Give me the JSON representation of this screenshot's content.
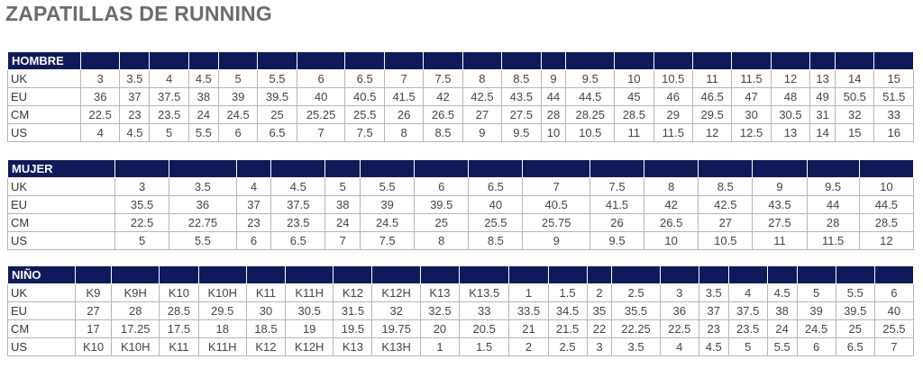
{
  "title": "ZAPATILLAS DE RUNNING",
  "tables": [
    {
      "label": "HOMBRE",
      "rows": [
        {
          "label": "UK",
          "cells": [
            "3",
            "3.5",
            "4",
            "4.5",
            "5",
            "5.5",
            "6",
            "6.5",
            "7",
            "7.5",
            "8",
            "8.5",
            "9",
            "9.5",
            "10",
            "10.5",
            "11",
            "11.5",
            "12",
            "13",
            "14",
            "15"
          ]
        },
        {
          "label": "EU",
          "cells": [
            "36",
            "37",
            "37.5",
            "38",
            "39",
            "39.5",
            "40",
            "40.5",
            "41.5",
            "42",
            "42.5",
            "43.5",
            "44",
            "44.5",
            "45",
            "46",
            "46.5",
            "47",
            "48",
            "49",
            "50.5",
            "51.5"
          ]
        },
        {
          "label": "CM",
          "cells": [
            "22.5",
            "23",
            "23.5",
            "24",
            "24.5",
            "25",
            "25.25",
            "25.5",
            "26",
            "26.5",
            "27",
            "27.5",
            "28",
            "28.25",
            "28.5",
            "29",
            "29.5",
            "30",
            "30.5",
            "31",
            "32",
            "33"
          ]
        },
        {
          "label": "US",
          "cells": [
            "4",
            "4.5",
            "5",
            "5.5",
            "6",
            "6.5",
            "7",
            "7.5",
            "8",
            "8.5",
            "9",
            "9.5",
            "10",
            "10.5",
            "11",
            "11.5",
            "12",
            "12.5",
            "13",
            "14",
            "15",
            "16"
          ]
        }
      ]
    },
    {
      "label": "MUJER",
      "rows": [
        {
          "label": "UK",
          "cells": [
            "3",
            "3.5",
            "4",
            "4.5",
            "5",
            "5.5",
            "6",
            "6.5",
            "7",
            "7.5",
            "8",
            "8.5",
            "9",
            "9.5",
            "10"
          ]
        },
        {
          "label": "EU",
          "cells": [
            "35.5",
            "36",
            "37",
            "37.5",
            "38",
            "39",
            "39.5",
            "40",
            "40.5",
            "41.5",
            "42",
            "42.5",
            "43.5",
            "44",
            "44.5"
          ]
        },
        {
          "label": "CM",
          "cells": [
            "22.5",
            "22.75",
            "23",
            "23.5",
            "24",
            "24.5",
            "25",
            "25.5",
            "25.75",
            "26",
            "26.5",
            "27",
            "27.5",
            "28",
            "28.5"
          ]
        },
        {
          "label": "US",
          "cells": [
            "5",
            "5.5",
            "6",
            "6.5",
            "7",
            "7.5",
            "8",
            "8.5",
            "9",
            "9.5",
            "10",
            "10.5",
            "11",
            "11.5",
            "12"
          ]
        }
      ]
    },
    {
      "label": "NIÑO",
      "rows": [
        {
          "label": "UK",
          "cells": [
            "K9",
            "K9H",
            "K10",
            "K10H",
            "K11",
            "K11H",
            "K12",
            "K12H",
            "K13",
            "K13.5",
            "1",
            "1.5",
            "2",
            "2.5",
            "3",
            "3.5",
            "4",
            "4.5",
            "5",
            "5.5",
            "6"
          ]
        },
        {
          "label": "EU",
          "cells": [
            "27",
            "28",
            "28.5",
            "29.5",
            "30",
            "30.5",
            "31.5",
            "32",
            "32.5",
            "33",
            "33.5",
            "34.5",
            "35",
            "35.5",
            "36",
            "37",
            "37.5",
            "38",
            "39",
            "39.5",
            "40"
          ]
        },
        {
          "label": "CM",
          "cells": [
            "17",
            "17.25",
            "17.5",
            "18",
            "18.5",
            "19",
            "19.5",
            "19.75",
            "20",
            "20.5",
            "21",
            "21.5",
            "22",
            "22.25",
            "22.5",
            "23",
            "23.5",
            "24",
            "24.5",
            "25",
            "25.5"
          ]
        },
        {
          "label": "US",
          "cells": [
            "K10",
            "K10H",
            "K11",
            "K11H",
            "K12",
            "K12H",
            "K13",
            "K13H",
            "1",
            "1.5",
            "2",
            "2.5",
            "3",
            "3.5",
            "4",
            "4.5",
            "5",
            "5.5",
            "6",
            "6.5",
            "7"
          ]
        }
      ]
    }
  ]
}
